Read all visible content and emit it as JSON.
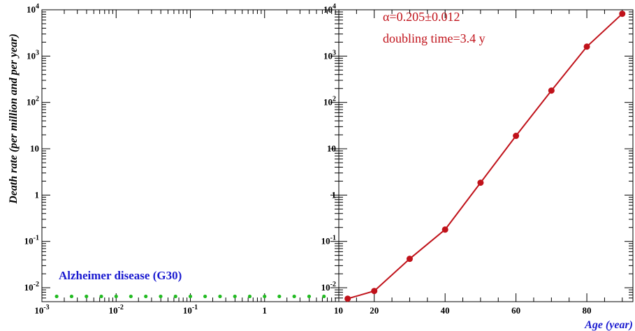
{
  "colors": {
    "axis": "#000000",
    "series_line": "#c0121a",
    "annotation": "#c0121a",
    "green_dots": "#22bb22",
    "legend_text": "#1a1ad0",
    "xlabel": "#1a1ad0"
  },
  "chart_data": [
    {
      "type": "scatter",
      "panel": "left",
      "title": "",
      "ylabel": "Death rate (per million and per year)",
      "xlabel": "",
      "xscale": "log",
      "yscale": "log",
      "xlim": [
        0.001,
        10
      ],
      "ylim": [
        0.005,
        10000
      ],
      "x_tick_labels": [
        {
          "base": "10",
          "exp": "-3"
        },
        {
          "base": "10",
          "exp": "-2"
        },
        {
          "base": "10",
          "exp": "-1"
        },
        {
          "base": "1",
          "exp": ""
        },
        {
          "base": "10",
          "exp": ""
        }
      ],
      "y_tick_labels": [
        {
          "base": "10",
          "exp": "-2"
        },
        {
          "base": "10",
          "exp": "-1"
        },
        {
          "base": "1",
          "exp": ""
        },
        {
          "base": "10",
          "exp": ""
        },
        {
          "base": "10",
          "exp": "2"
        },
        {
          "base": "10",
          "exp": "3"
        },
        {
          "base": "10",
          "exp": "4"
        }
      ],
      "legend_text": "Alzheimer disease (G30)",
      "legend_placement": "bottom-left",
      "series": [
        {
          "name": "Alzheimer disease (G30)",
          "x": [
            0.00158,
            0.00251,
            0.00398,
            0.00631,
            0.01,
            0.0158,
            0.0251,
            0.0398,
            0.0631,
            0.1,
            0.158,
            0.251,
            0.398,
            0.631,
            1.0,
            1.58,
            2.51,
            3.98,
            6.31
          ],
          "y": [
            0.0065,
            0.0065,
            0.0065,
            0.0065,
            0.0065,
            0.0065,
            0.0065,
            0.0065,
            0.0065,
            0.0065,
            0.0065,
            0.0065,
            0.0065,
            0.0065,
            0.0065,
            0.0065,
            0.0065,
            0.0065,
            0.0065
          ]
        }
      ]
    },
    {
      "type": "line",
      "panel": "right",
      "title": "",
      "xlabel": "Age (year)",
      "ylabel": "",
      "xscale": "linear",
      "yscale": "log",
      "xlim": [
        10,
        93
      ],
      "ylim": [
        0.005,
        10000
      ],
      "x_tick_labels": [
        "20",
        "40",
        "60",
        "80"
      ],
      "y_tick_labels": [
        {
          "base": "10",
          "exp": "-2"
        },
        {
          "base": "10",
          "exp": "-1"
        },
        {
          "base": "1",
          "exp": ""
        },
        {
          "base": "10",
          "exp": ""
        },
        {
          "base": "10",
          "exp": "2"
        },
        {
          "base": "10",
          "exp": "3"
        },
        {
          "base": "10",
          "exp": "4"
        }
      ],
      "annotations": [
        "α=0.205±0.012",
        "doubling time=3.4 y"
      ],
      "series": [
        {
          "x": [
            12.5,
            20,
            30,
            40,
            50,
            60,
            70,
            80,
            90
          ],
          "y": [
            0.0058,
            0.0085,
            0.042,
            0.18,
            1.85,
            19,
            180,
            1600,
            8200
          ]
        }
      ]
    }
  ]
}
